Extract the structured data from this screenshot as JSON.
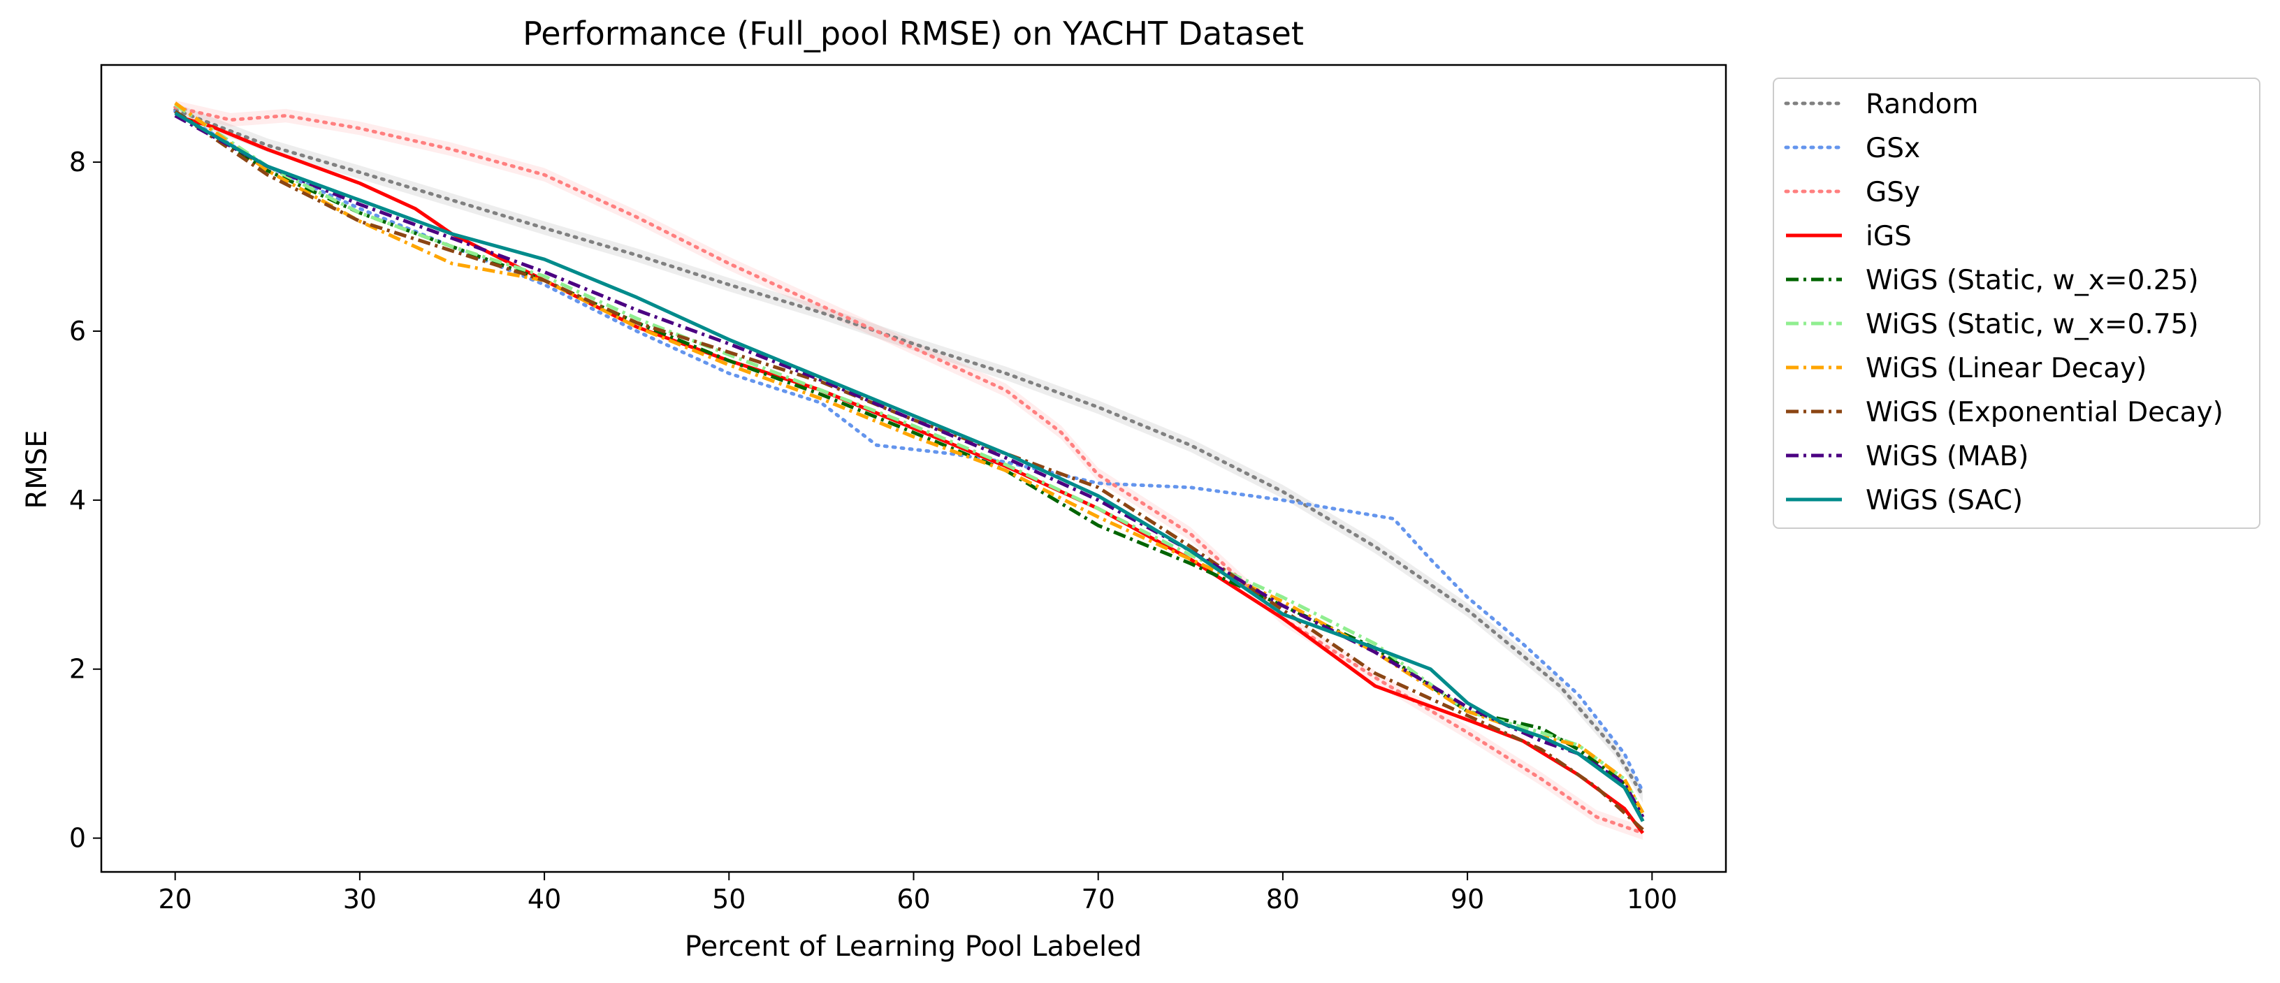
{
  "chart_data": {
    "type": "line",
    "title": "Performance (Full_pool RMSE) on YACHT Dataset",
    "xlabel": "Percent of Learning Pool Labeled",
    "ylabel": "RMSE",
    "xlim": [
      16,
      104
    ],
    "ylim": [
      -0.4,
      9.15
    ],
    "xticks": [
      20,
      30,
      40,
      50,
      60,
      70,
      80,
      90,
      100
    ],
    "yticks": [
      0,
      2,
      4,
      6,
      8
    ],
    "grid": false,
    "legend_position": "outside-right",
    "series": [
      {
        "name": "Random",
        "color": "#808080",
        "style": "dotted",
        "band": true,
        "points": [
          [
            20,
            8.62
          ],
          [
            25,
            8.2
          ],
          [
            30,
            7.88
          ],
          [
            35,
            7.55
          ],
          [
            40,
            7.22
          ],
          [
            45,
            6.9
          ],
          [
            50,
            6.55
          ],
          [
            55,
            6.22
          ],
          [
            60,
            5.85
          ],
          [
            65,
            5.5
          ],
          [
            70,
            5.1
          ],
          [
            75,
            4.65
          ],
          [
            80,
            4.1
          ],
          [
            85,
            3.45
          ],
          [
            90,
            2.7
          ],
          [
            95,
            1.8
          ],
          [
            98,
            1.05
          ],
          [
            99.5,
            0.5
          ]
        ]
      },
      {
        "name": "GSx",
        "color": "#6495ed",
        "style": "dotted",
        "band": false,
        "points": [
          [
            20,
            8.6
          ],
          [
            25,
            7.95
          ],
          [
            30,
            7.45
          ],
          [
            35,
            7.0
          ],
          [
            40,
            6.55
          ],
          [
            45,
            6.0
          ],
          [
            50,
            5.5
          ],
          [
            55,
            5.15
          ],
          [
            58,
            4.65
          ],
          [
            62,
            4.55
          ],
          [
            65,
            4.45
          ],
          [
            70,
            4.2
          ],
          [
            75,
            4.15
          ],
          [
            80,
            4.0
          ],
          [
            86,
            3.78
          ],
          [
            88,
            3.3
          ],
          [
            90,
            2.85
          ],
          [
            93,
            2.3
          ],
          [
            96,
            1.7
          ],
          [
            98.5,
            1.0
          ],
          [
            99.5,
            0.55
          ]
        ]
      },
      {
        "name": "GSy",
        "color": "#ff7f7f",
        "style": "dotted",
        "band": true,
        "points": [
          [
            20,
            8.65
          ],
          [
            23,
            8.5
          ],
          [
            26,
            8.55
          ],
          [
            30,
            8.4
          ],
          [
            35,
            8.15
          ],
          [
            40,
            7.85
          ],
          [
            45,
            7.35
          ],
          [
            50,
            6.8
          ],
          [
            55,
            6.3
          ],
          [
            60,
            5.8
          ],
          [
            65,
            5.3
          ],
          [
            68,
            4.8
          ],
          [
            70,
            4.3
          ],
          [
            75,
            3.6
          ],
          [
            80,
            2.6
          ],
          [
            85,
            1.9
          ],
          [
            90,
            1.25
          ],
          [
            94,
            0.7
          ],
          [
            97,
            0.25
          ],
          [
            99.5,
            0.06
          ]
        ]
      },
      {
        "name": "iGS",
        "color": "#ff0000",
        "style": "solid",
        "band": false,
        "points": [
          [
            20,
            8.55
          ],
          [
            22,
            8.42
          ],
          [
            25,
            8.15
          ],
          [
            30,
            7.75
          ],
          [
            33,
            7.45
          ],
          [
            35,
            7.15
          ],
          [
            40,
            6.6
          ],
          [
            45,
            6.05
          ],
          [
            50,
            5.65
          ],
          [
            55,
            5.3
          ],
          [
            60,
            4.85
          ],
          [
            65,
            4.4
          ],
          [
            70,
            3.9
          ],
          [
            75,
            3.3
          ],
          [
            80,
            2.6
          ],
          [
            85,
            1.8
          ],
          [
            90,
            1.4
          ],
          [
            93,
            1.15
          ],
          [
            96,
            0.75
          ],
          [
            98.5,
            0.35
          ],
          [
            99.5,
            0.06
          ]
        ]
      },
      {
        "name": "WiGS (Static, w_x=0.25)",
        "color": "#006400",
        "style": "dashdot",
        "band": false,
        "points": [
          [
            20,
            8.6
          ],
          [
            25,
            7.9
          ],
          [
            30,
            7.4
          ],
          [
            35,
            7.0
          ],
          [
            40,
            6.6
          ],
          [
            45,
            6.1
          ],
          [
            50,
            5.65
          ],
          [
            55,
            5.25
          ],
          [
            60,
            4.8
          ],
          [
            65,
            4.35
          ],
          [
            70,
            3.7
          ],
          [
            75,
            3.25
          ],
          [
            80,
            2.75
          ],
          [
            85,
            2.25
          ],
          [
            90,
            1.5
          ],
          [
            94,
            1.3
          ],
          [
            96,
            1.05
          ],
          [
            98.5,
            0.65
          ],
          [
            99.5,
            0.2
          ]
        ]
      },
      {
        "name": "WiGS (Static, w_x=0.75)",
        "color": "#90ee90",
        "style": "dashdot",
        "band": false,
        "points": [
          [
            20,
            8.68
          ],
          [
            25,
            7.95
          ],
          [
            30,
            7.4
          ],
          [
            35,
            7.0
          ],
          [
            40,
            6.65
          ],
          [
            45,
            6.15
          ],
          [
            50,
            5.72
          ],
          [
            55,
            5.3
          ],
          [
            60,
            4.88
          ],
          [
            65,
            4.42
          ],
          [
            70,
            3.9
          ],
          [
            75,
            3.35
          ],
          [
            80,
            2.85
          ],
          [
            85,
            2.3
          ],
          [
            90,
            1.5
          ],
          [
            94,
            1.25
          ],
          [
            96,
            1.1
          ],
          [
            98.5,
            0.7
          ],
          [
            99.5,
            0.3
          ]
        ]
      },
      {
        "name": "WiGS (Linear Decay)",
        "color": "#ffa500",
        "style": "dashdot",
        "band": false,
        "points": [
          [
            20,
            8.7
          ],
          [
            25,
            7.9
          ],
          [
            30,
            7.3
          ],
          [
            35,
            6.8
          ],
          [
            40,
            6.6
          ],
          [
            45,
            6.05
          ],
          [
            50,
            5.6
          ],
          [
            55,
            5.2
          ],
          [
            60,
            4.75
          ],
          [
            65,
            4.35
          ],
          [
            70,
            3.8
          ],
          [
            75,
            3.3
          ],
          [
            80,
            2.8
          ],
          [
            85,
            2.2
          ],
          [
            90,
            1.5
          ],
          [
            94,
            1.2
          ],
          [
            96,
            1.1
          ],
          [
            98.5,
            0.7
          ],
          [
            99.5,
            0.3
          ]
        ]
      },
      {
        "name": "WiGS (Exponential Decay)",
        "color": "#8b4513",
        "style": "dashdot",
        "band": false,
        "points": [
          [
            20,
            8.6
          ],
          [
            25,
            7.85
          ],
          [
            30,
            7.3
          ],
          [
            35,
            6.95
          ],
          [
            40,
            6.6
          ],
          [
            45,
            6.1
          ],
          [
            50,
            5.75
          ],
          [
            55,
            5.4
          ],
          [
            60,
            4.95
          ],
          [
            65,
            4.55
          ],
          [
            70,
            4.15
          ],
          [
            75,
            3.45
          ],
          [
            80,
            2.7
          ],
          [
            85,
            1.95
          ],
          [
            90,
            1.45
          ],
          [
            94,
            1.05
          ],
          [
            97,
            0.6
          ],
          [
            99.5,
            0.1
          ]
        ]
      },
      {
        "name": "WiGS (MAB)",
        "color": "#4b0082",
        "style": "dashdot",
        "band": false,
        "points": [
          [
            20,
            8.55
          ],
          [
            25,
            7.95
          ],
          [
            30,
            7.5
          ],
          [
            35,
            7.1
          ],
          [
            40,
            6.7
          ],
          [
            45,
            6.25
          ],
          [
            50,
            5.85
          ],
          [
            55,
            5.42
          ],
          [
            60,
            4.95
          ],
          [
            65,
            4.5
          ],
          [
            70,
            4.0
          ],
          [
            75,
            3.4
          ],
          [
            80,
            2.75
          ],
          [
            85,
            2.2
          ],
          [
            90,
            1.55
          ],
          [
            94,
            1.15
          ],
          [
            96,
            1.0
          ],
          [
            98.5,
            0.65
          ],
          [
            99.5,
            0.25
          ]
        ]
      },
      {
        "name": "WiGS (SAC)",
        "color": "#008b8b",
        "style": "solid",
        "band": false,
        "points": [
          [
            20,
            8.58
          ],
          [
            25,
            7.95
          ],
          [
            30,
            7.55
          ],
          [
            35,
            7.15
          ],
          [
            40,
            6.85
          ],
          [
            45,
            6.4
          ],
          [
            50,
            5.9
          ],
          [
            55,
            5.45
          ],
          [
            60,
            5.0
          ],
          [
            65,
            4.55
          ],
          [
            70,
            4.05
          ],
          [
            75,
            3.4
          ],
          [
            80,
            2.65
          ],
          [
            85,
            2.25
          ],
          [
            88,
            2.0
          ],
          [
            90,
            1.6
          ],
          [
            92,
            1.35
          ],
          [
            94,
            1.2
          ],
          [
            96,
            1.0
          ],
          [
            98.5,
            0.6
          ],
          [
            99.5,
            0.2
          ]
        ]
      }
    ]
  }
}
